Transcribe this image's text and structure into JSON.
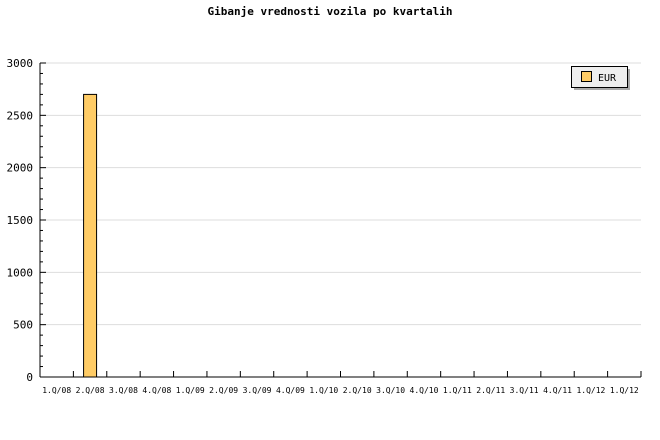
{
  "chart_data": {
    "type": "bar",
    "title": "Gibanje vrednosti vozila po kvartalih",
    "categories": [
      "1.Q/08",
      "2.Q/08",
      "3.Q/08",
      "4.Q/08",
      "1.Q/09",
      "2.Q/09",
      "3.Q/09",
      "4.Q/09",
      "1.Q/10",
      "2.Q/10",
      "3.Q/10",
      "4.Q/10",
      "1.Q/11",
      "2.Q/11",
      "3.Q/11",
      "4.Q/11",
      "1.Q/12",
      "1.Q/12"
    ],
    "series": [
      {
        "name": "EUR",
        "values": [
          null,
          2700,
          null,
          null,
          null,
          null,
          null,
          null,
          null,
          null,
          null,
          null,
          null,
          null,
          null,
          null,
          null,
          null
        ]
      }
    ],
    "ylim": [
      0,
      3000
    ],
    "yticks": [
      0,
      500,
      1000,
      1500,
      2000,
      2500,
      3000
    ],
    "grid": true,
    "legend": "top-right",
    "colors": {
      "bar": "#ffcc66",
      "grid": "#dddddd"
    }
  }
}
